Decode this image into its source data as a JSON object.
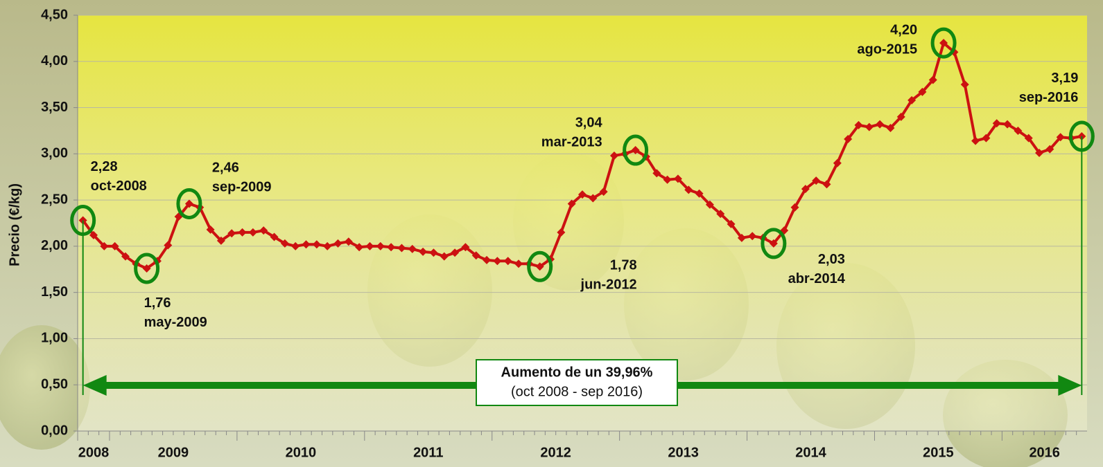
{
  "chart_data": {
    "type": "line",
    "y_label": "Precio (€/kg)",
    "categories": [
      "2008",
      "2009",
      "2010",
      "2011",
      "2012",
      "2013",
      "2014",
      "2015",
      "2016"
    ],
    "values": [
      [
        2.28,
        2.12,
        2.0
      ],
      [
        2.0,
        1.89,
        1.81,
        1.76,
        1.84,
        2.01,
        2.32,
        2.46,
        2.42,
        2.18,
        2.06,
        2.14
      ],
      [
        2.15,
        2.15,
        2.17,
        2.1,
        2.03,
        2.0,
        2.02,
        2.02,
        2.0,
        2.03,
        2.05,
        1.99
      ],
      [
        2.0,
        2.0,
        1.99,
        1.98,
        1.97,
        1.94,
        1.93,
        1.89,
        1.93,
        1.99,
        1.9,
        1.85
      ],
      [
        1.84,
        1.84,
        1.81,
        1.81,
        1.78,
        1.86,
        2.15,
        2.46,
        2.56,
        2.52,
        2.59,
        2.98
      ],
      [
        3.0,
        3.04,
        2.97,
        2.79,
        2.72,
        2.73,
        2.61,
        2.57,
        2.45,
        2.35,
        2.24,
        2.09
      ],
      [
        2.11,
        2.09,
        2.03,
        2.17,
        2.42,
        2.62,
        2.71,
        2.67,
        2.9,
        3.16,
        3.31,
        3.29
      ],
      [
        3.32,
        3.28,
        3.4,
        3.58,
        3.67,
        3.8,
        4.2,
        4.1,
        3.75,
        3.14,
        3.17,
        3.33
      ],
      [
        3.32,
        3.25,
        3.17,
        3.01,
        3.05,
        3.18,
        3.17,
        3.19
      ]
    ],
    "color": "#cc1111",
    "highlight_color": "#118811",
    "ylim": [
      0,
      4.5
    ],
    "yticks": [
      {
        "value": 0,
        "label": "0,00"
      },
      {
        "value": 0.5,
        "label": "0,50"
      },
      {
        "value": 1,
        "label": "1,00"
      },
      {
        "value": 1.5,
        "label": "1,50"
      },
      {
        "value": 2,
        "label": "2,00"
      },
      {
        "value": 2.5,
        "label": "2,50"
      },
      {
        "value": 3,
        "label": "3,00"
      },
      {
        "value": 3.5,
        "label": "3,50"
      },
      {
        "value": 4,
        "label": "4,00"
      },
      {
        "value": 4.5,
        "label": "4,50"
      }
    ],
    "grid": true,
    "annotations": [
      {
        "value": 2.28,
        "value_label": "2,28",
        "date": "oct-2008"
      },
      {
        "value": 1.76,
        "value_label": "1,76",
        "date": "may-2009"
      },
      {
        "value": 2.46,
        "value_label": "2,46",
        "date": "sep-2009"
      },
      {
        "value": 1.78,
        "value_label": "1,78",
        "date": "jun-2012"
      },
      {
        "value": 3.04,
        "value_label": "3,04",
        "date": "mar-2013"
      },
      {
        "value": 2.03,
        "value_label": "2,03",
        "date": "abr-2014"
      },
      {
        "value": 4.2,
        "value_label": "4,20",
        "date": "ago-2015"
      },
      {
        "value": 3.19,
        "value_label": "3,19",
        "date": "sep-2016"
      }
    ],
    "summary": {
      "title": "Aumento de un 39,96%",
      "period": "(oct 2008 - sep 2016)"
    }
  }
}
